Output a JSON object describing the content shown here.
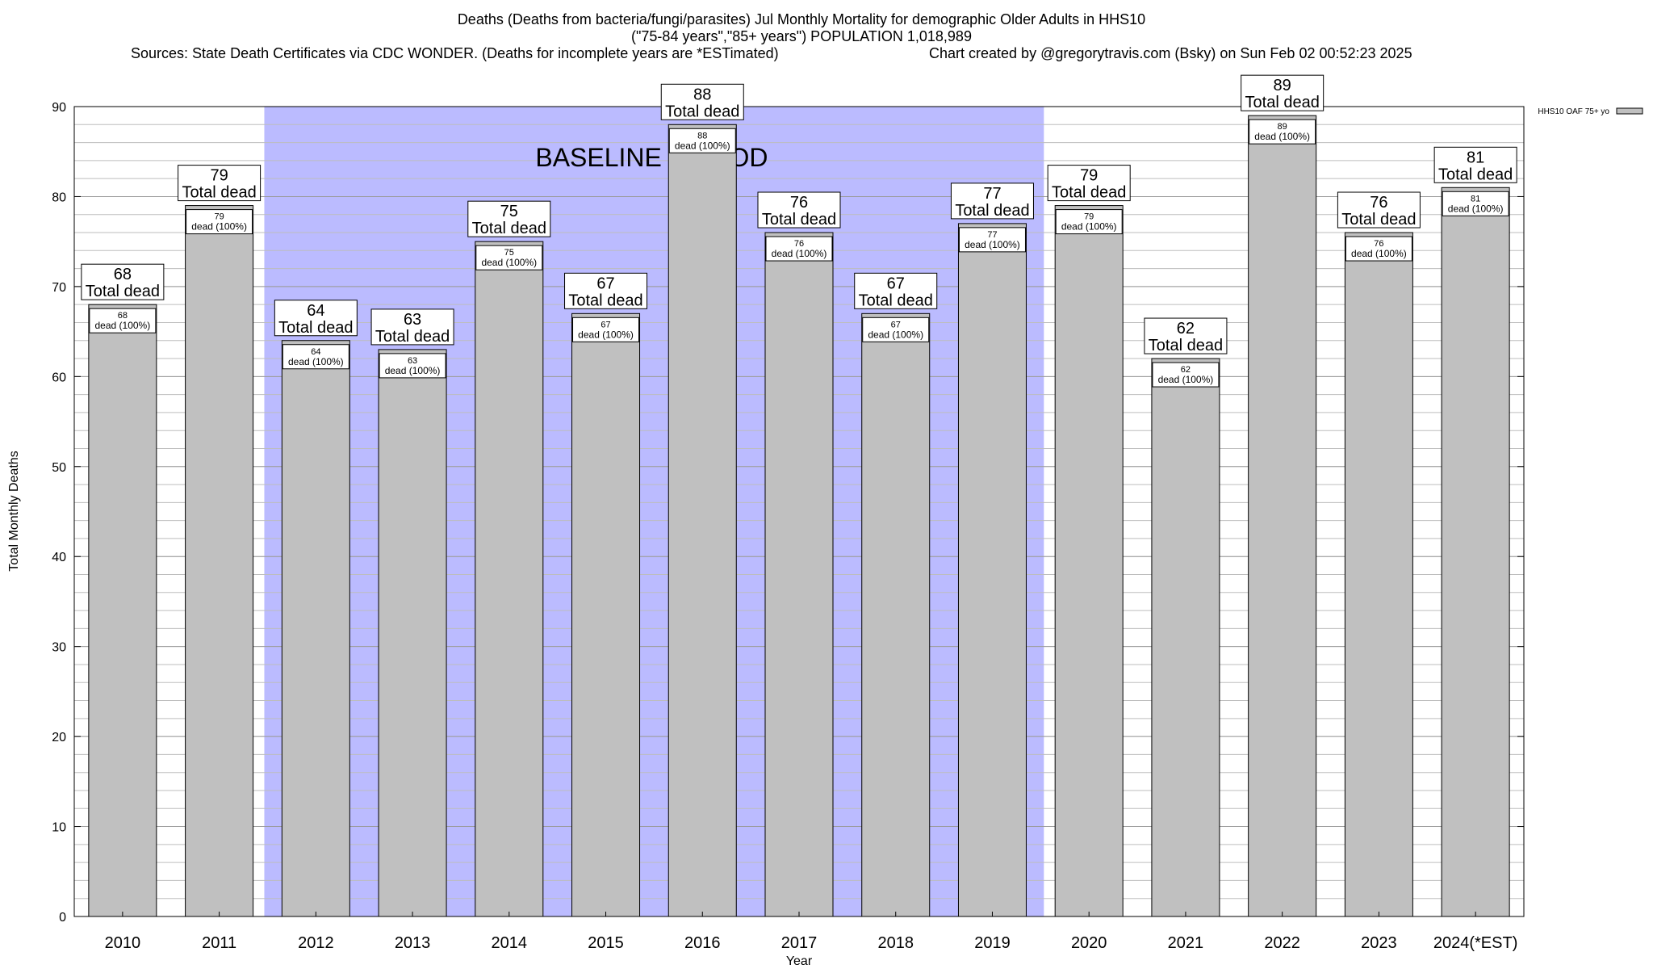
{
  "chart_data": {
    "type": "bar",
    "title_lines": [
      "Deaths (Deaths from bacteria/fungi/parasites) Jul Monthly Mortality for demographic Older Adults in HHS10",
      "(\"75-84 years\",\"85+ years\") POPULATION 1,018,989"
    ],
    "source_text": "Sources: State Death Certificates via CDC WONDER. (Deaths for incomplete years are *ESTimated)",
    "credit_text": "Chart created by @gregorytravis.com (Bsky) on Sun Feb 02 00:52:23 2025",
    "xlabel": "Year",
    "ylabel": "Total Monthly Deaths",
    "ylim": [
      0,
      90
    ],
    "yticks": [
      0,
      10,
      20,
      30,
      40,
      50,
      60,
      70,
      80,
      90
    ],
    "minor_grid_step": 2,
    "grid": true,
    "legend": {
      "label": "HHS10 OAF 75+ yo",
      "placement": "top-right outside"
    },
    "baseline": {
      "label": "BASELINE PERIOD",
      "start": "2012",
      "end": "2019",
      "color": "#bbbbff"
    },
    "bar_color": "#c0c0c0",
    "top_label_suffix": "Total dead",
    "inner_label_suffix": "dead (100%)",
    "categories": [
      "2010",
      "2011",
      "2012",
      "2013",
      "2014",
      "2015",
      "2016",
      "2017",
      "2018",
      "2019",
      "2020",
      "2021",
      "2022",
      "2023",
      "2024(*EST)"
    ],
    "series": [
      {
        "values": [
          68,
          79,
          64,
          63,
          75,
          67,
          88,
          76,
          67,
          77,
          79,
          62,
          89,
          76,
          81
        ]
      }
    ]
  }
}
